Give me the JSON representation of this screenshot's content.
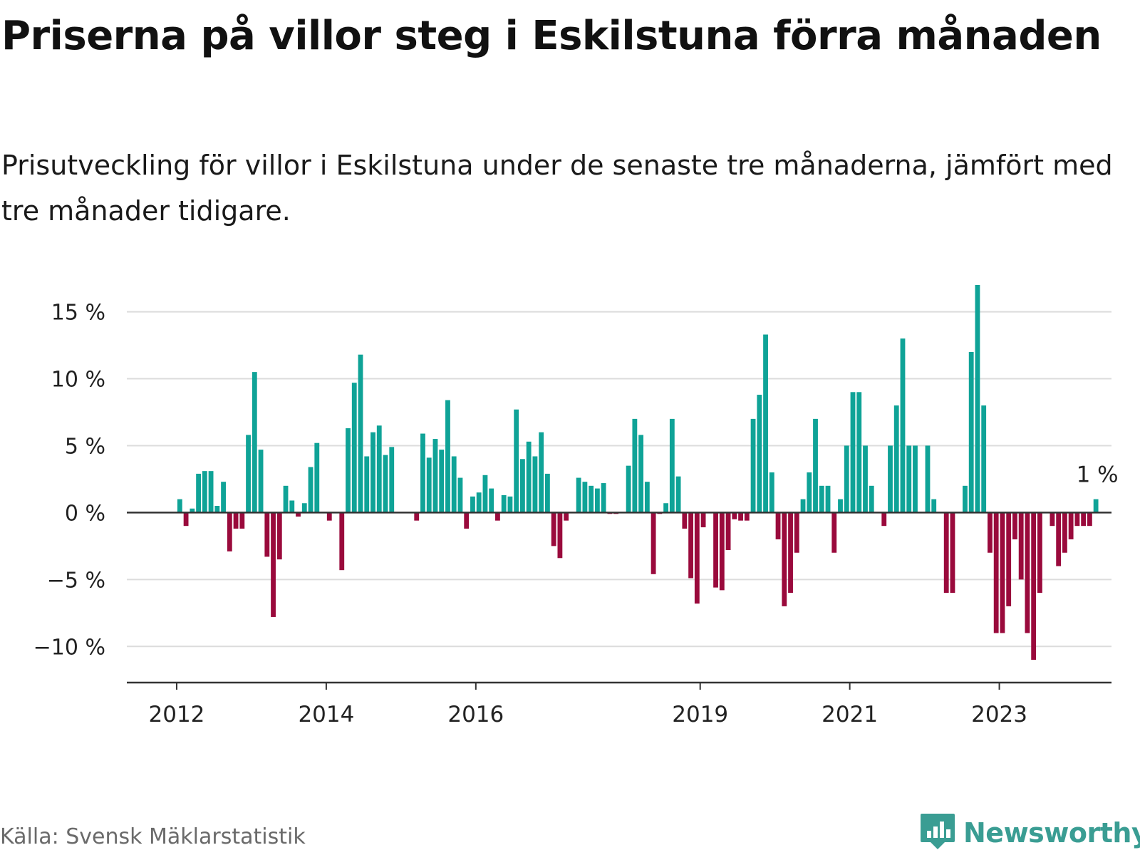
{
  "title": "Priserna på villor steg i Eskilstuna förra månaden",
  "subtitle": "Prisutveckling för villor i Eskilstuna under de senaste tre månaderna, jämfört med tre månader tidigare.",
  "source": "Källa: Svensk Mäklarstatistik",
  "brand": {
    "name": "Newsworthy",
    "icon": "newsworthy-logo-icon",
    "color": "#3a9d93"
  },
  "colors": {
    "positive": "#0fa397",
    "negative": "#9a0a3c",
    "grid": "#dcdcdc",
    "axis": "#333333"
  },
  "chart_data": {
    "type": "bar",
    "title": "Priserna på villor steg i Eskilstuna förra månaden",
    "subtitle": "Prisutveckling för villor i Eskilstuna under de senaste tre månaderna, jämfört med tre månader tidigare.",
    "xlabel": "",
    "ylabel": "",
    "y_unit": "%",
    "ylim": [
      -12.7,
      17
    ],
    "y_ticks": [
      {
        "value": 15,
        "label": "15 %"
      },
      {
        "value": 10,
        "label": "10 %"
      },
      {
        "value": 5,
        "label": "5 %"
      },
      {
        "value": 0,
        "label": "0 %"
      },
      {
        "value": -5,
        "label": "−5 %"
      },
      {
        "value": -10,
        "label": "−10 %"
      }
    ],
    "x_ticks": [
      {
        "date": "2012-01",
        "label": "2012"
      },
      {
        "date": "2014-01",
        "label": "2014"
      },
      {
        "date": "2016-01",
        "label": "2016"
      },
      {
        "date": "2019-01",
        "label": "2019"
      },
      {
        "date": "2021-01",
        "label": "2021"
      },
      {
        "date": "2023-01",
        "label": "2023"
      }
    ],
    "xlim": [
      "2011-05",
      "2024-07"
    ],
    "grid": true,
    "last_value_label": "1 %",
    "series": [
      {
        "start": "2012-01",
        "values": [
          1,
          -1,
          0.3,
          2.9,
          3.1,
          3.1,
          0.5,
          2.3,
          -2.9,
          -1.2,
          -1.2,
          5.8,
          10.5,
          4.7,
          -3.3,
          -7.8,
          -3.5,
          2,
          0.9,
          -0.3,
          0.7,
          3.4,
          5.2,
          0,
          -0.6,
          0,
          -4.3,
          6.3,
          9.7,
          11.8,
          4.2,
          6,
          6.5,
          4.3,
          4.9,
          0,
          0,
          0,
          -0.6,
          5.9,
          4.1,
          5.5,
          4.7,
          8.4,
          4.2,
          2.6,
          -1.2,
          1.2,
          1.5,
          2.8,
          1.8,
          -0.6,
          1.3,
          1.2,
          7.7,
          4,
          5.3,
          4.2,
          6,
          2.9,
          -2.5,
          -3.4,
          -0.6,
          0,
          2.6,
          2.3,
          2,
          1.8,
          2.2,
          -0.1,
          -0.1,
          0,
          3.5,
          7,
          5.8,
          2.3,
          -4.6,
          -0.1,
          0.7,
          7,
          2.7,
          -1.2,
          -4.9,
          -6.8,
          -1.1,
          0,
          -5.6,
          -5.8,
          -2.8,
          -0.5,
          -0.6,
          -0.6,
          7,
          8.8,
          13.3,
          3,
          -2,
          -7,
          -6,
          -3,
          1,
          3,
          7,
          2,
          2,
          -3,
          1,
          5,
          9,
          9,
          5,
          2,
          0,
          -1,
          5,
          8,
          13,
          5,
          5,
          0,
          5,
          1,
          0,
          -6,
          -6,
          0,
          2,
          12,
          17,
          8,
          -3,
          -9,
          -9,
          -7,
          -2,
          -5,
          -9,
          -11,
          -6,
          0,
          -1,
          -4,
          -3,
          -2,
          -1,
          -1,
          -1,
          1
        ]
      }
    ]
  }
}
